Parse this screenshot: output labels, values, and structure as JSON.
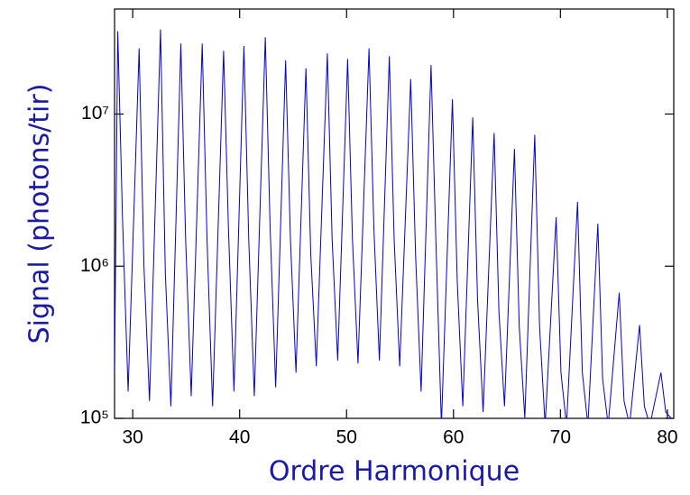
{
  "chart_data": {
    "type": "line",
    "xlabel": "Ordre Harmonique",
    "ylabel": "Signal (photons/tir)",
    "log_y": true,
    "color": "#0000d0",
    "xlim": [
      28.3,
      80.6
    ],
    "ylim": [
      100000,
      49000000
    ],
    "xticks": [
      30,
      40,
      50,
      60,
      70,
      80
    ],
    "yticks": [
      {
        "value": 100000,
        "label": "10⁵"
      },
      {
        "value": 1000000,
        "label": "10⁶"
      },
      {
        "value": 10000000,
        "label": "10⁷"
      }
    ],
    "x": [
      28.3,
      28.6,
      29.05,
      29.57,
      30.6,
      31.05,
      31.57,
      32.6,
      33.05,
      33.57,
      34.5,
      34.95,
      35.47,
      36.5,
      36.95,
      37.47,
      38.5,
      38.95,
      39.47,
      40.4,
      40.85,
      41.37,
      42.4,
      42.85,
      43.37,
      44.3,
      44.75,
      45.27,
      46.2,
      46.65,
      47.17,
      48.2,
      48.65,
      49.17,
      50.1,
      50.55,
      51.07,
      52.1,
      52.55,
      53.07,
      54.0,
      54.45,
      54.97,
      56.0,
      56.45,
      56.97,
      57.9,
      58.35,
      58.87,
      59.9,
      60.35,
      60.87,
      61.8,
      62.25,
      62.77,
      63.8,
      64.25,
      64.77,
      65.7,
      66.15,
      66.67,
      67.6,
      68.05,
      68.57,
      69.6,
      70.05,
      70.57,
      71.6,
      72.05,
      72.57,
      73.5,
      73.95,
      74.47,
      75.5,
      75.95,
      76.47,
      77.4,
      77.85,
      78.37,
      79.4,
      79.85,
      80.37
    ],
    "values": [
      200000,
      35000000,
      2000000,
      150000,
      27000000,
      1000000,
      130000,
      36000000,
      900000,
      120000,
      29000000,
      1500000,
      140000,
      29000000,
      1500000,
      120000,
      26000000,
      1800000,
      150000,
      28000000,
      1500000,
      140000,
      32000000,
      1800000,
      160000,
      22500000,
      1500000,
      200000,
      20000000,
      1200000,
      220000,
      25000000,
      1500000,
      240000,
      23000000,
      1500000,
      230000,
      27000000,
      1800000,
      240000,
      24000000,
      1500000,
      220000,
      17000000,
      1200000,
      150000,
      21000000,
      1500000,
      90000,
      12500000,
      800000,
      120000,
      9500000,
      600000,
      110000,
      7500000,
      500000,
      120000,
      5900000,
      400000,
      100000,
      7300000,
      400000,
      90000,
      2100000,
      200000,
      90000,
      2650000,
      200000,
      90000,
      1900000,
      180000,
      90000,
      670000,
      130000,
      90000,
      410000,
      120000,
      90000,
      200000,
      110000,
      100000
    ]
  }
}
